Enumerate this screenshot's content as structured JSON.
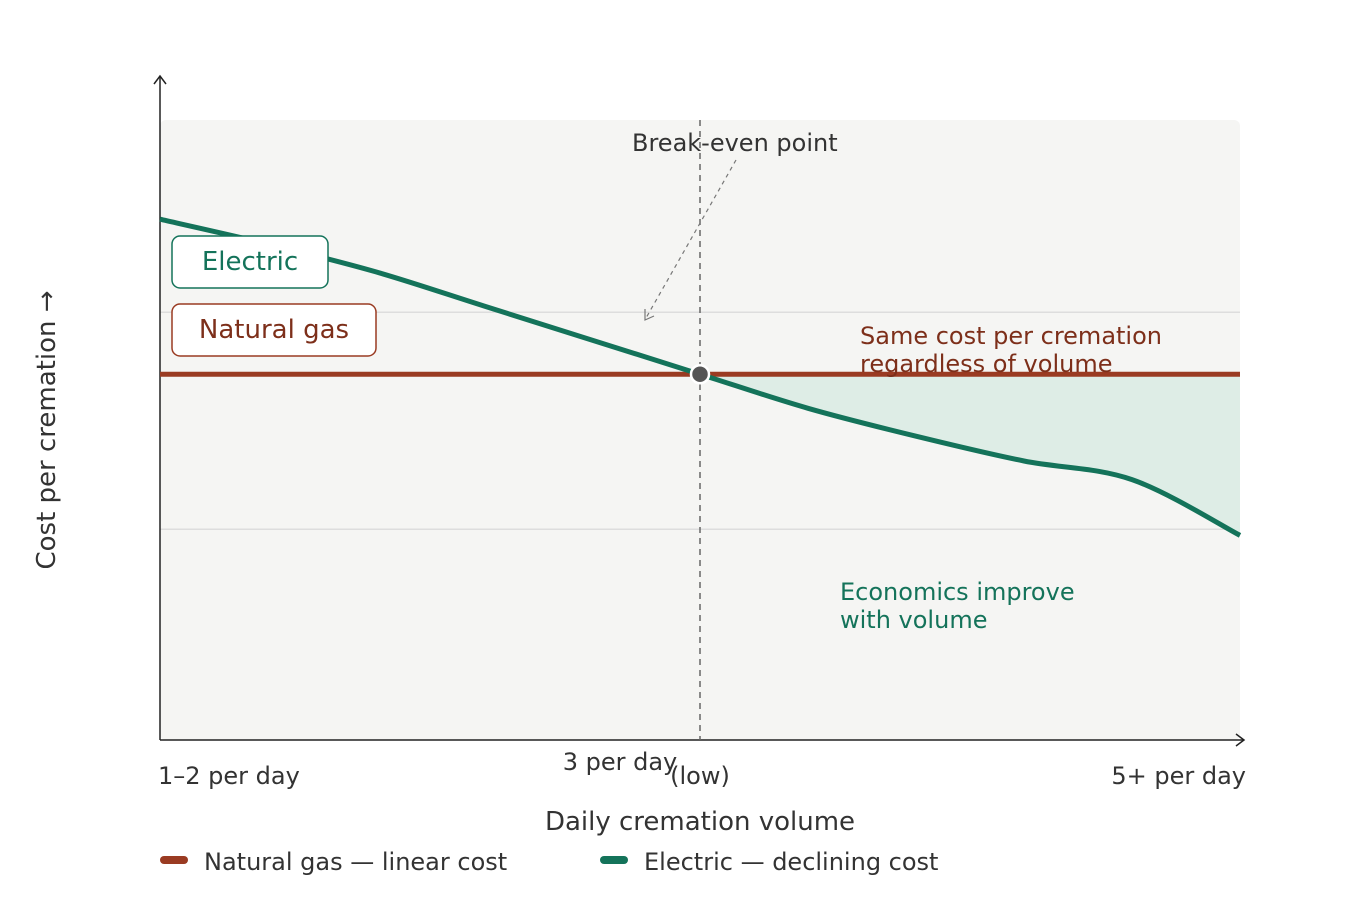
{
  "chart_data": {
    "type": "line",
    "title": "",
    "xlabel": "Daily cremation volume",
    "ylabel": "Cost per cremation →",
    "x_ticks": [
      {
        "x": 1,
        "label": "1–2 per day"
      },
      {
        "x": 3,
        "label": "3 per day"
      },
      {
        "x": 5,
        "label": "5+ per day"
      }
    ],
    "x_extra_label": {
      "x": 3.35,
      "text": "(low)"
    },
    "xlim": [
      1,
      5
    ],
    "ylim": [
      0,
      10
    ],
    "gridlines_y": [
      6.9,
      3.4
    ],
    "series": [
      {
        "name": "Natural gas",
        "legend": "Natural gas — linear cost",
        "color": "#9a3b22",
        "x": [
          1,
          5
        ],
        "y": [
          5.9,
          5.9
        ]
      },
      {
        "name": "Electric",
        "legend": "Electric — declining cost",
        "color": "#14735a",
        "x": [
          1,
          1.4,
          1.8,
          2.2,
          2.6,
          3.0,
          3.4,
          3.8,
          4.2,
          4.6,
          5.0
        ],
        "y": [
          8.4,
          8.0,
          7.55,
          7.0,
          6.45,
          5.9,
          5.35,
          4.9,
          4.5,
          4.2,
          3.3
        ]
      }
    ],
    "series_labels": [
      "Electric",
      "Natural gas"
    ],
    "break_even": {
      "x": 3,
      "y": 5.9,
      "label": "Break-even point"
    },
    "annotations": {
      "gas_line1": "Same cost per cremation",
      "gas_line2": "regardless of volume",
      "electric_line1": "Economics improve",
      "electric_line2": "with volume"
    },
    "colors": {
      "plot_bg": "#f5f5f3",
      "savings_fill": "#deede6",
      "grid": "#dddddd",
      "axis": "#222222",
      "text": "#333333",
      "marker": "#555555"
    }
  }
}
